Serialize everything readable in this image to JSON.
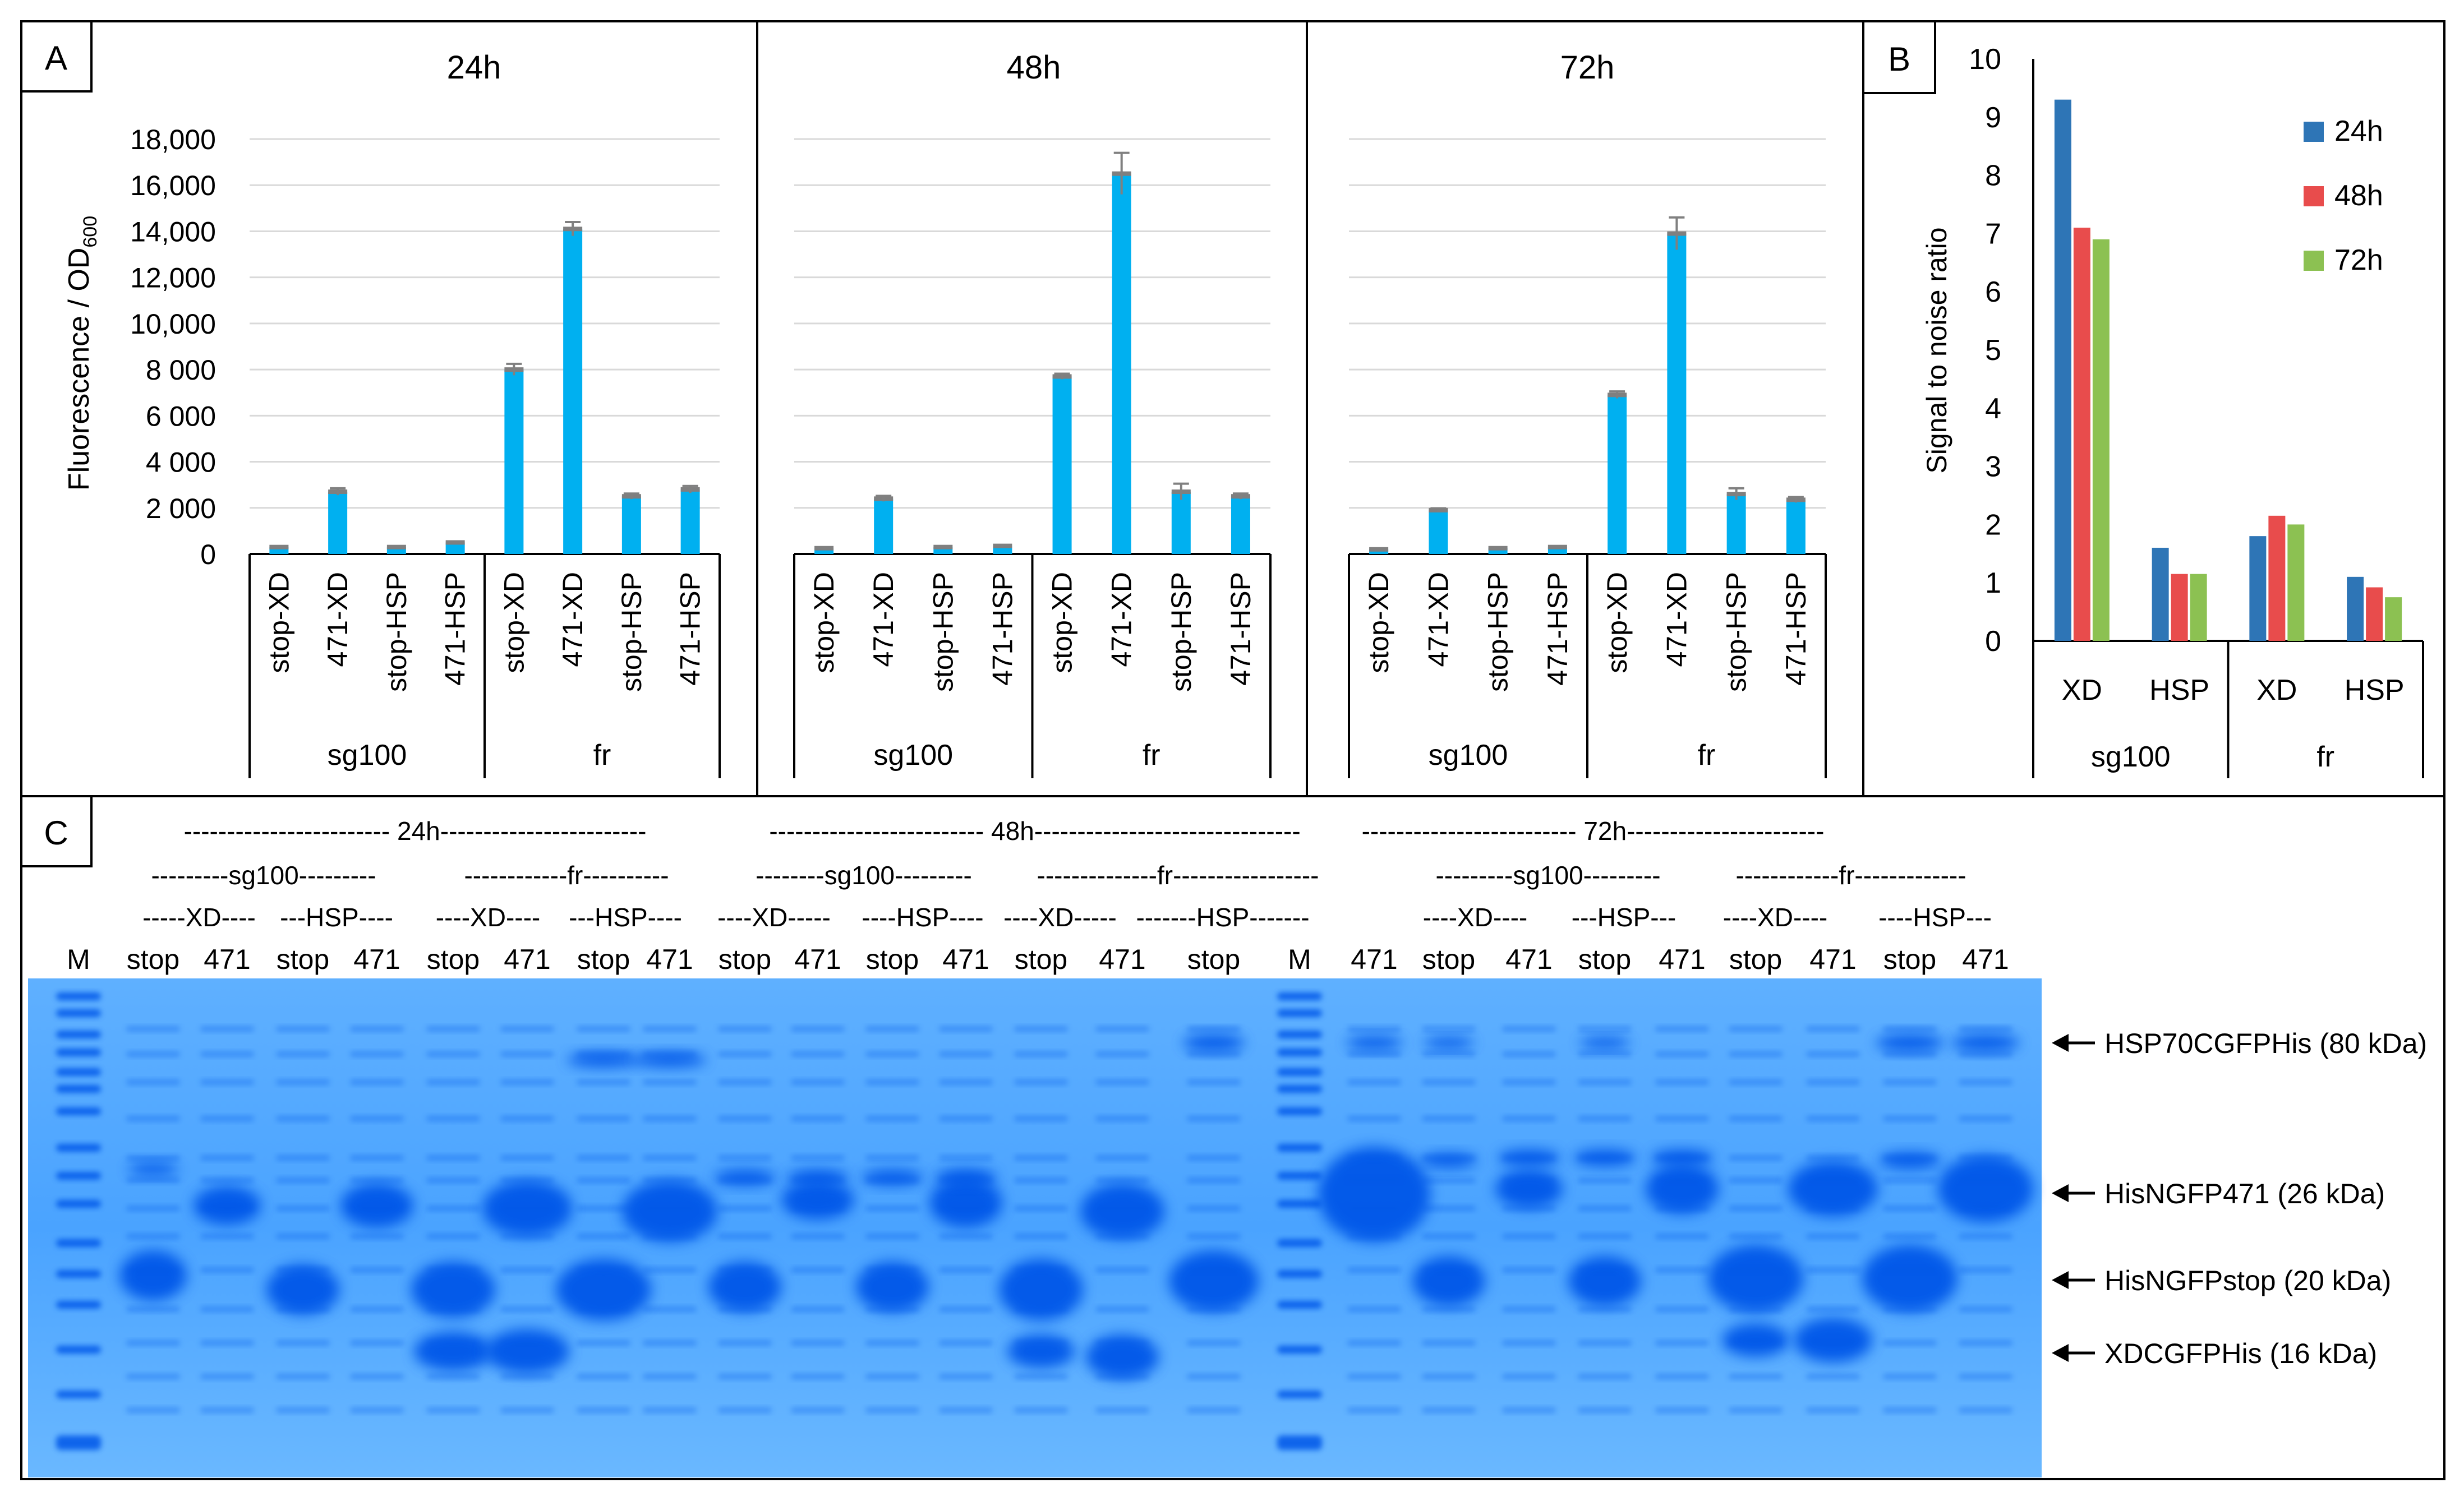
{
  "panel_labels": {
    "a": "A",
    "b": "B",
    "c": "C"
  },
  "chart_data": [
    {
      "type": "bar",
      "title": "24h",
      "ylabel_main": "Fluorescence / OD",
      "ylabel_sub": "600",
      "ylim": [
        0,
        18000
      ],
      "yticks": [
        0,
        2000,
        4000,
        6000,
        8000,
        10000,
        12000,
        14000,
        16000,
        18000
      ],
      "ytick_labels": [
        "0",
        "2 000",
        "4 000",
        "6 000",
        "8 000",
        "10,000",
        "12,000",
        "14,000",
        "16,000",
        "18,000"
      ],
      "categories": [
        "stop-XD",
        "471-XD",
        "stop-HSP",
        "471-HSP",
        "stop-XD",
        "471-XD",
        "stop-HSP",
        "471-HSP"
      ],
      "values": [
        300,
        2700,
        300,
        500,
        8000,
        14100,
        2500,
        2800
      ],
      "errors": [
        30,
        150,
        30,
        40,
        250,
        300,
        120,
        150
      ],
      "groups": [
        {
          "label": "sg100",
          "span": 4
        },
        {
          "label": "fr",
          "span": 4
        }
      ],
      "bar_color": "#00b0f0",
      "error_color": "#808080"
    },
    {
      "type": "bar",
      "title": "48h",
      "ylim": [
        0,
        18000
      ],
      "categories": [
        "stop-XD",
        "471-XD",
        "stop-HSP",
        "471-HSP",
        "stop-XD",
        "471-XD",
        "stop-HSP",
        "471-HSP"
      ],
      "values": [
        250,
        2400,
        300,
        350,
        7700,
        16500,
        2700,
        2500
      ],
      "errors": [
        30,
        120,
        30,
        40,
        120,
        900,
        350,
        120
      ],
      "groups": [
        {
          "label": "sg100",
          "span": 4
        },
        {
          "label": "fr",
          "span": 4
        }
      ],
      "bar_color": "#00b0f0",
      "error_color": "#808080"
    },
    {
      "type": "bar",
      "title": "72h",
      "ylim": [
        0,
        18000
      ],
      "categories": [
        "stop-XD",
        "471-XD",
        "stop-HSP",
        "471-HSP",
        "stop-XD",
        "471-XD",
        "stop-HSP",
        "471-HSP"
      ],
      "values": [
        200,
        1900,
        250,
        300,
        6900,
        13900,
        2600,
        2350
      ],
      "errors": [
        30,
        80,
        30,
        30,
        150,
        700,
        250,
        120
      ],
      "groups": [
        {
          "label": "sg100",
          "span": 4
        },
        {
          "label": "fr",
          "span": 4
        }
      ],
      "bar_color": "#00b0f0",
      "error_color": "#808080"
    },
    {
      "type": "bar",
      "ylabel": "Signal to noise ratio",
      "ylim": [
        0,
        10
      ],
      "yticks": [
        0,
        1,
        2,
        3,
        4,
        5,
        6,
        7,
        8,
        9,
        10
      ],
      "categories": [
        "XD",
        "HSP",
        "XD",
        "HSP"
      ],
      "groups": [
        {
          "label": "sg100",
          "span": 2
        },
        {
          "label": "fr",
          "span": 2
        }
      ],
      "series": [
        {
          "name": "24h",
          "values": [
            9.3,
            1.6,
            1.8,
            1.1
          ],
          "color": "#2e75b6"
        },
        {
          "name": "48h",
          "values": [
            7.1,
            1.15,
            2.15,
            0.92
          ],
          "color": "#e84c4c"
        },
        {
          "name": "72h",
          "values": [
            6.9,
            1.15,
            2.0,
            0.75
          ],
          "color": "#8cc152"
        }
      ],
      "legend_position": "top-right"
    }
  ],
  "gel": {
    "time_headers": [
      "------------------------ 24h------------------------",
      "------------------------- 48h-------------------------------",
      "------------------------- 72h-----------------------"
    ],
    "construct_headers": [
      "---------sg100---------",
      "------------fr----------",
      "--------sg100---------",
      "--------------fr-----------------",
      "---------sg100---------",
      "------------fr-------------"
    ],
    "protein_headers": [
      "-----XD----",
      "---HSP----",
      "----XD----",
      "---HSP----",
      "----XD-----",
      "----HSP----",
      "----XD-----",
      "-------HSP-------",
      "----XD----",
      "---HSP---",
      "----XD----",
      "----HSP---"
    ],
    "lanes": [
      "M",
      "stop",
      "471",
      "stop",
      "471",
      "stop",
      "471",
      "stop",
      "471",
      "stop",
      "471",
      "stop",
      "471",
      "stop",
      "471",
      "stop",
      "M",
      "471",
      "stop",
      "471",
      "stop",
      "471",
      "stop",
      "471",
      "stop",
      "471"
    ],
    "band_labels": [
      "HSP70CGFPHis (80 kDa)",
      "HisNGFP471 (26 kDa)",
      "HisNGFPstop (20 kDa)",
      "XDCGFPHis (16 kDa)"
    ],
    "gel_color": "#4aa3ff",
    "band_color": "#0057e8"
  }
}
